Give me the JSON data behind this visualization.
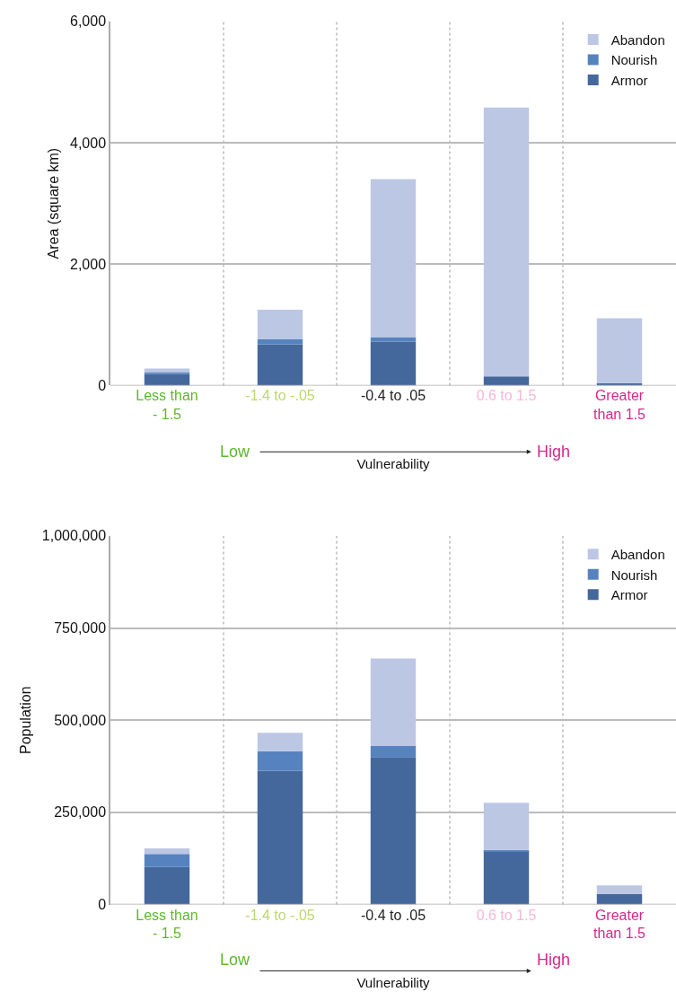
{
  "chart_data": [
    {
      "type": "bar",
      "stacked": true,
      "ylabel": "Area (square km)",
      "xlabel": "Vulnerability",
      "annotations": [
        "Low",
        "High"
      ],
      "categories": [
        "Less than\n- 1.5",
        "-1.4 to -.05",
        "-0.4 to .05",
        "0.6 to 1.5",
        "Greater\nthan 1.5"
      ],
      "series": [
        {
          "name": "Armor",
          "color": "#44679c",
          "values": [
            190,
            680,
            720,
            150,
            40
          ]
        },
        {
          "name": "Nourish",
          "color": "#5683c0",
          "values": [
            30,
            80,
            80,
            null,
            null
          ]
        },
        {
          "name": "Abandon",
          "color": "#bcc7e4",
          "values": [
            60,
            490,
            2600,
            4430,
            1070
          ]
        }
      ],
      "ylim": [
        0,
        6000
      ],
      "yticks": [
        0,
        {
          "value": 2000,
          "label": "2,000"
        },
        {
          "value": 4000,
          "label": "4,000"
        },
        {
          "value": 6000,
          "label": "6,000"
        }
      ],
      "grid": true,
      "legend": "top right"
    },
    {
      "type": "bar",
      "stacked": true,
      "ylabel": "Population",
      "xlabel": "Vulnerability",
      "annotations": [
        "Low",
        "High"
      ],
      "categories": [
        "Less than\n- 1.5",
        "-1.4 to -.05",
        "-0.4 to .05",
        "0.6 to 1.5",
        "Greater\nthan 1.5"
      ],
      "series": [
        {
          "name": "Armor",
          "color": "#44679c",
          "values": [
            102000,
            363000,
            400000,
            145000,
            28000
          ]
        },
        {
          "name": "Nourish",
          "color": "#5683c0",
          "values": [
            35000,
            53000,
            30000,
            3000,
            null
          ]
        },
        {
          "name": "Abandon",
          "color": "#bcc7e4",
          "values": [
            15000,
            50000,
            237000,
            128000,
            24000
          ]
        }
      ],
      "ylim": [
        0,
        1000000
      ],
      "yticks": [
        0,
        {
          "value": 250000,
          "label": "250,000"
        },
        {
          "value": 500000,
          "label": "500,000"
        },
        {
          "value": 750000,
          "label": "750,000"
        },
        {
          "value": 1000000,
          "label": "1,000,000"
        }
      ],
      "grid": true,
      "legend": "top right"
    }
  ]
}
